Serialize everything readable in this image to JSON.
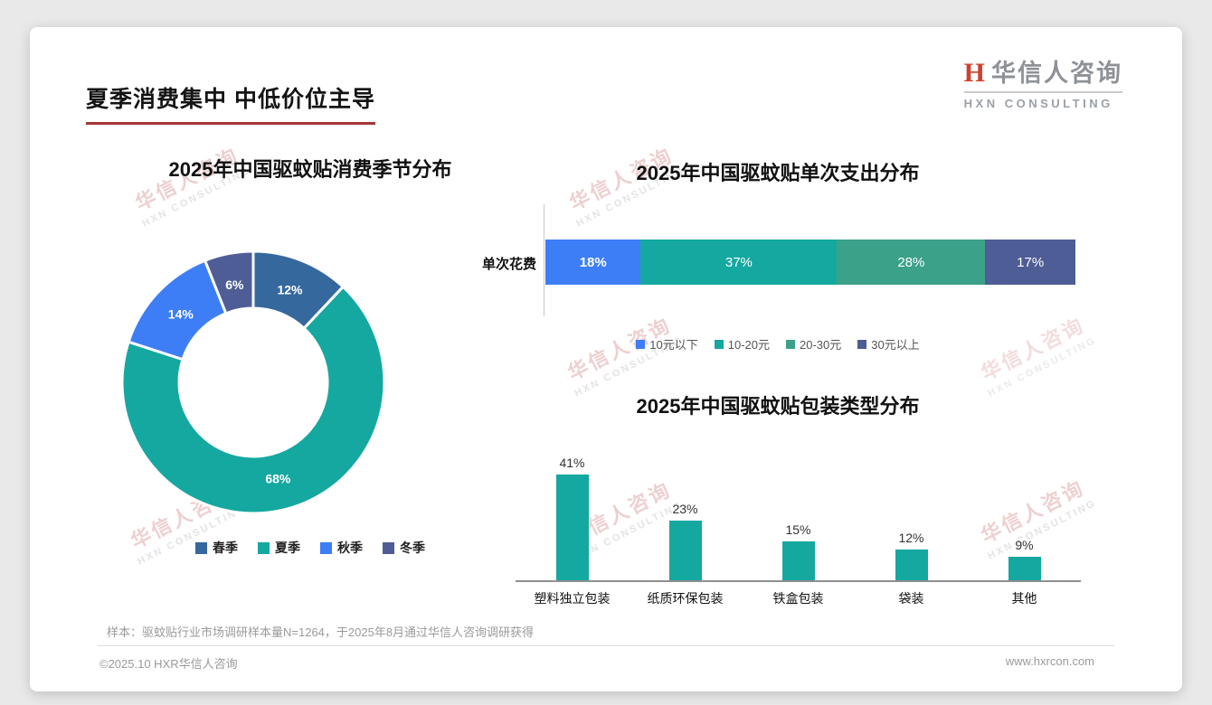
{
  "page": {
    "title": "夏季消费集中 中低价位主导",
    "logo": {
      "mark": "H",
      "name": "华信人咨询",
      "subtitle": "HXN CONSULTING"
    },
    "watermark": {
      "line1": "华信人咨询",
      "line2": "HXN CONSULTING"
    },
    "footer": {
      "note": "样本：驱蚊贴行业市场调研样本量N=1264，于2025年8月通过华信人咨询调研获得",
      "copyright": "©2025.10 HXR华信人咨询",
      "website": "www.hxrcon.com"
    }
  },
  "chart_data": [
    {
      "type": "pie",
      "subtype": "donut",
      "title": "2025年中国驱蚊贴消费季节分布",
      "labels": [
        "春季",
        "夏季",
        "秋季",
        "冬季"
      ],
      "values": [
        12,
        68,
        14,
        6
      ],
      "colors": [
        "#35689d",
        "#15a8a0",
        "#3d7ef6",
        "#4e5d96"
      ],
      "legend_position": "bottom"
    },
    {
      "type": "bar",
      "subtype": "horizontal-stacked",
      "title": "2025年中国驱蚊贴单次支出分布",
      "category": "单次花费",
      "series": [
        {
          "name": "10元以下",
          "value": 18,
          "color": "#3d7ef6"
        },
        {
          "name": "10-20元",
          "value": 37,
          "color": "#15a8a0"
        },
        {
          "name": "20-30元",
          "value": 28,
          "color": "#3ba189"
        },
        {
          "name": "30元以上",
          "value": 17,
          "color": "#4e5d96"
        }
      ],
      "xlim": [
        0,
        100
      ],
      "legend_position": "bottom"
    },
    {
      "type": "bar",
      "title": "2025年中国驱蚊贴包装类型分布",
      "categories": [
        "塑料独立包装",
        "纸质环保包装",
        "铁盒包装",
        "袋装",
        "其他"
      ],
      "values": [
        41,
        23,
        15,
        12,
        9
      ],
      "color": "#15a8a0",
      "ylim": [
        0,
        45
      ],
      "grid": false
    }
  ]
}
